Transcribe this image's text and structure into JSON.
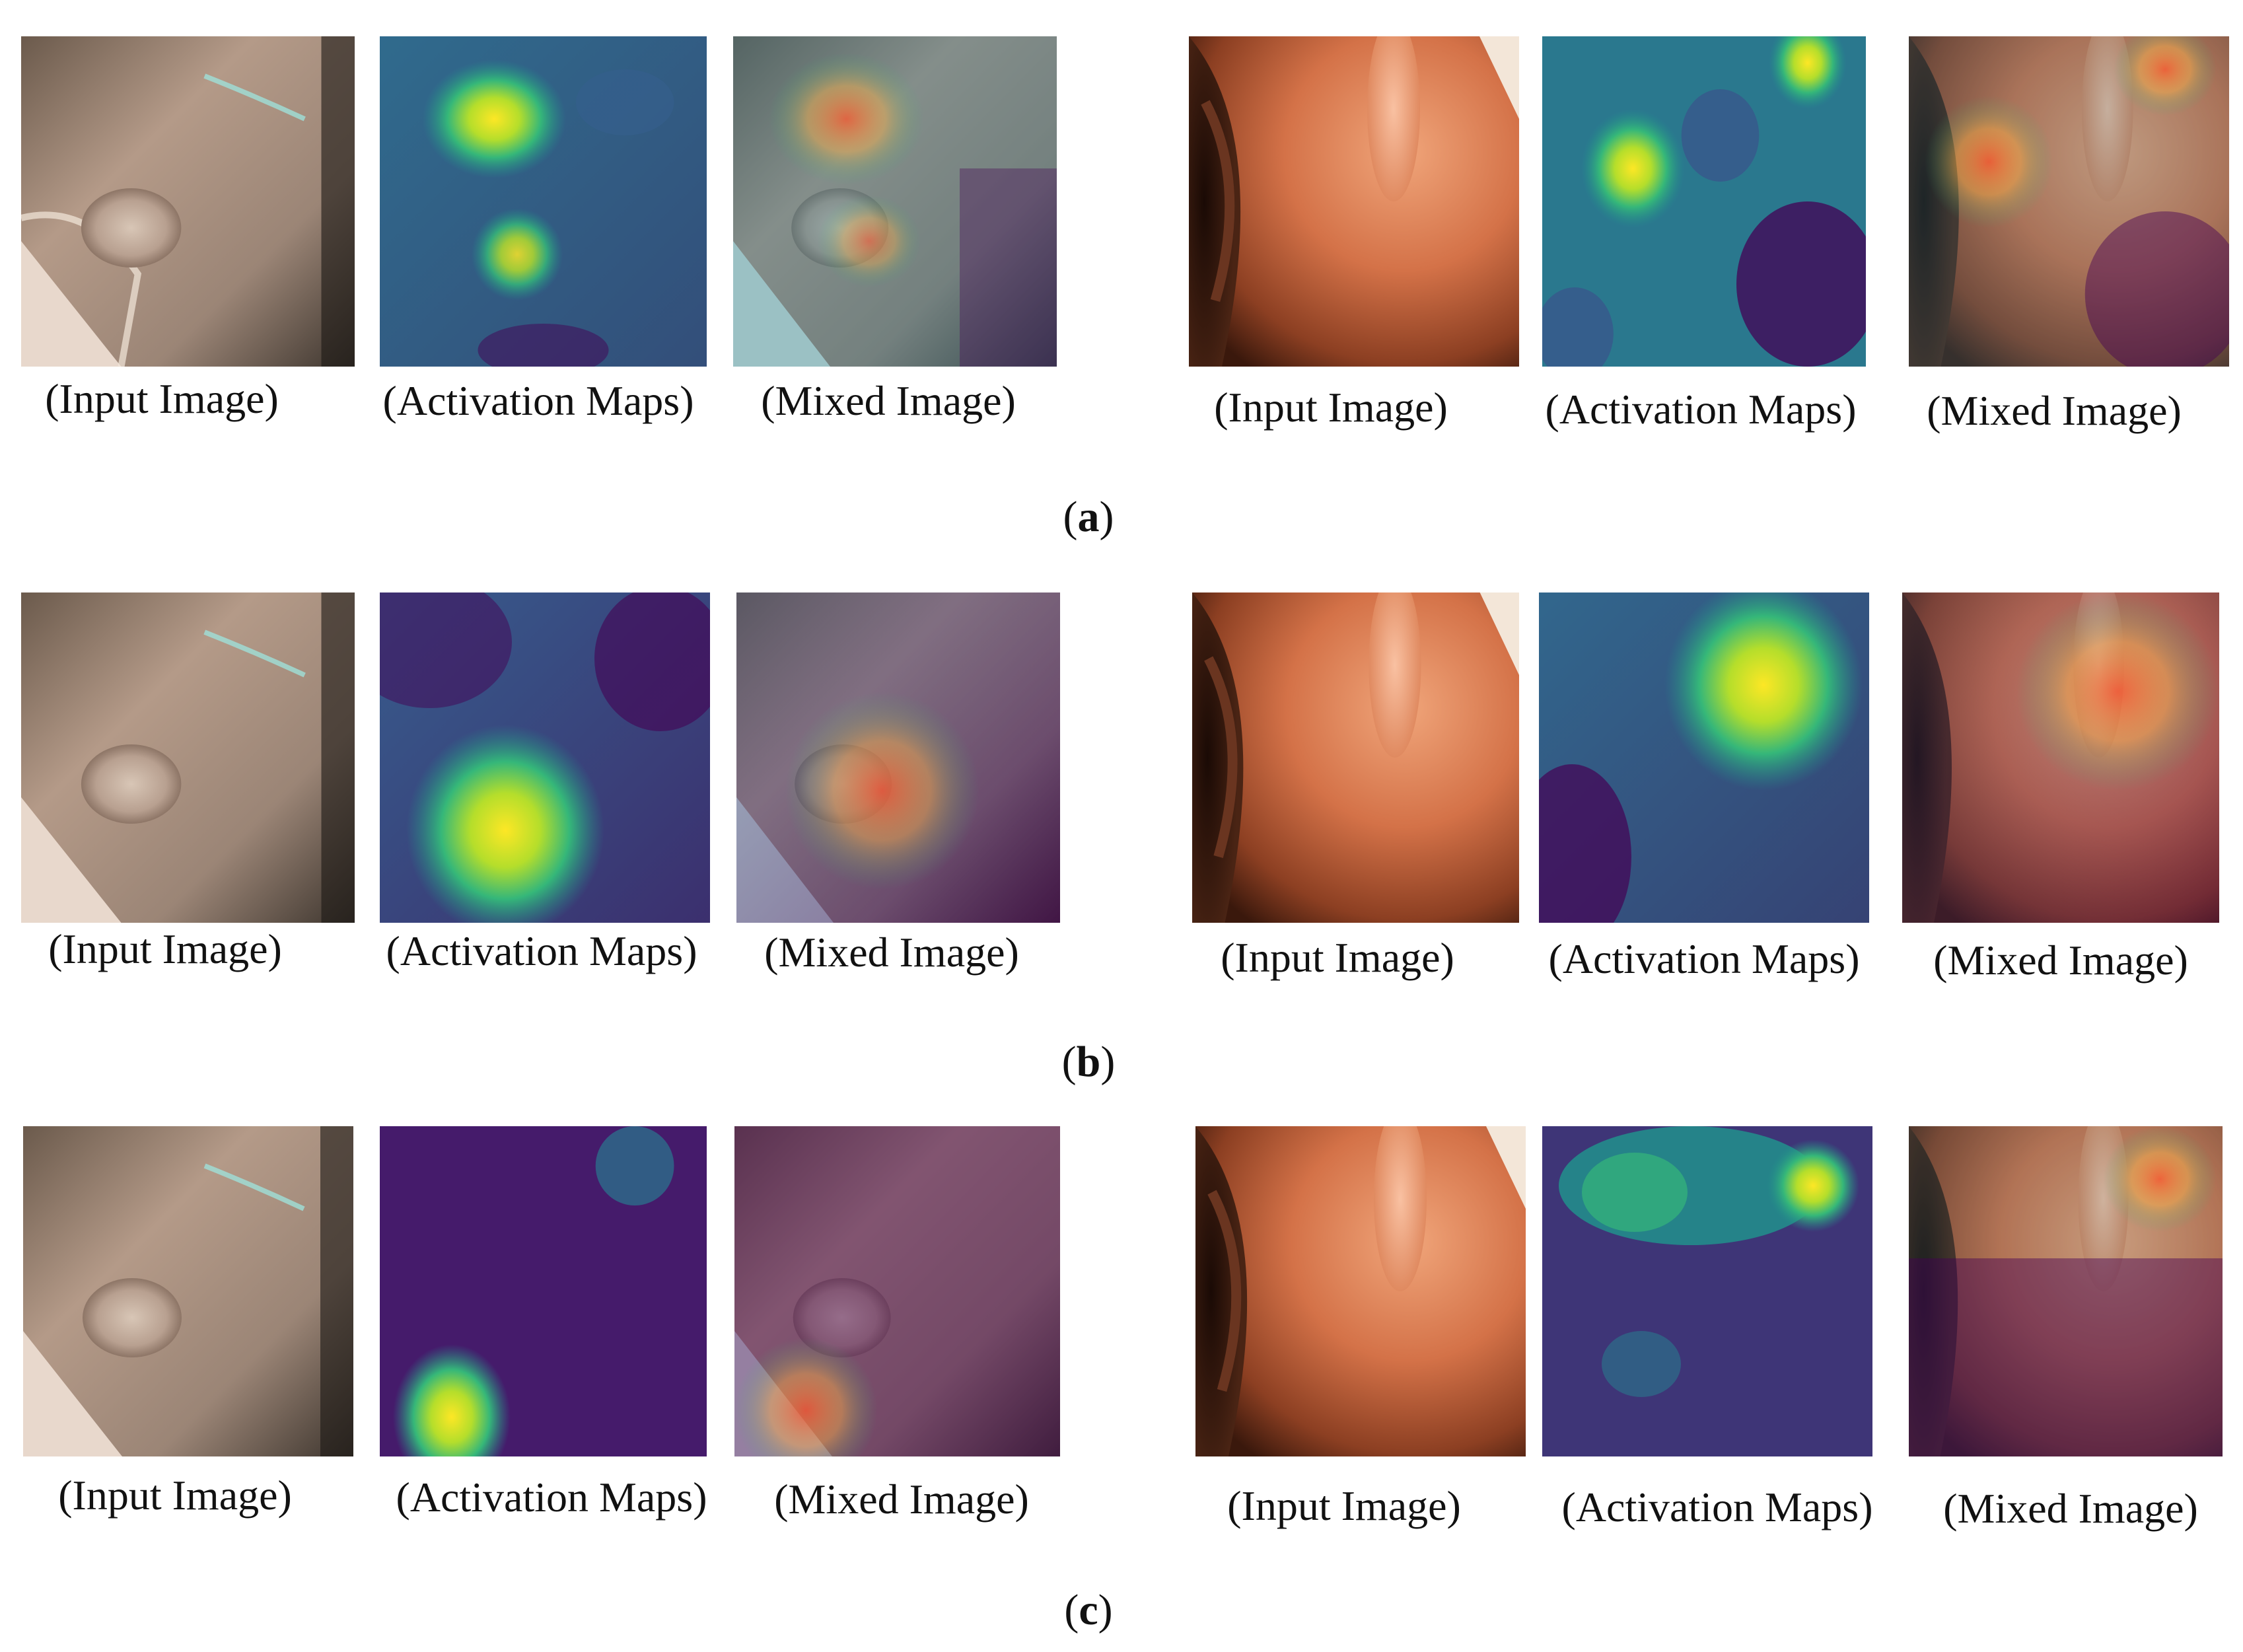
{
  "figure": {
    "captions": {
      "input": "(Input Image)",
      "activation": "(Activation Maps)",
      "mixed": "(Mixed Image)"
    },
    "rows": [
      {
        "label": "a"
      },
      {
        "label": "b"
      },
      {
        "label": "c"
      }
    ],
    "colors": {
      "viridis_low": "#440154",
      "viridis_mid": "#21918c",
      "viridis_high": "#fde725",
      "tissue_left": "#b9a08e",
      "tissue_right": "#d9805a"
    }
  }
}
